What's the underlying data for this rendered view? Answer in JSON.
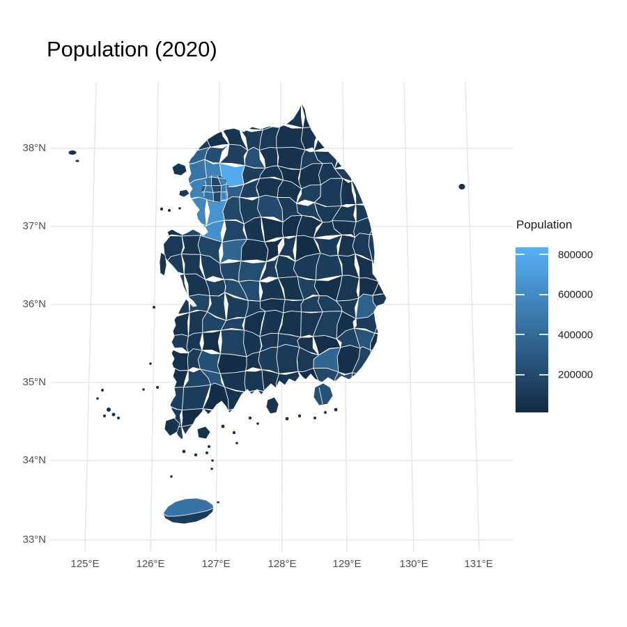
{
  "title": "Population (2020)",
  "legend": {
    "title": "Population",
    "tick_labels": [
      "800000",
      "600000",
      "400000",
      "200000"
    ],
    "gradient_top": "#56B1F7",
    "gradient_bottom": "#132B43"
  },
  "axes": {
    "x_ticks": [
      "125°E",
      "126°E",
      "127°E",
      "128°E",
      "129°E",
      "130°E",
      "131°E"
    ],
    "y_ticks": [
      "38°N",
      "37°N",
      "36°N",
      "35°N",
      "34°N",
      "33°N"
    ]
  },
  "chart_data": {
    "type": "choropleth_map",
    "title": "Population (2020)",
    "region_shown": "South Korea, municipal-level districts with white boundaries",
    "legend_title": "Population",
    "color_scale": {
      "type": "continuous_gradient",
      "low_color": "#132B43",
      "high_color": "#56B1F7",
      "ticks": [
        200000,
        400000,
        600000,
        800000
      ],
      "domain_estimate": [
        13000,
        835000
      ]
    },
    "x_axis": {
      "unit": "degrees east longitude",
      "ticks": [
        125,
        126,
        127,
        128,
        129,
        130,
        131
      ]
    },
    "y_axis": {
      "unit": "degrees north latitude",
      "ticks": [
        33,
        34,
        35,
        36,
        37,
        38
      ]
    },
    "grid": true,
    "background_color": "#FFFFFF",
    "gridline_color": "#E5E5E5",
    "axis_text_color": "#4D4D4D",
    "observed_pattern": "Most districts are dark navy (below ~150000). Bright high-population patches cluster around the capital area (~126.8-127.3E, 37.2-37.7N, up to ~800000+), with medium-blue patches at major cities along ~127-129E and on the north half of Jeju island (~126.5E, 33.45N).",
    "hotspots": [
      {
        "lon": 126.9,
        "lat": 37.25,
        "approx_value": 800000
      },
      {
        "lon": 127.27,
        "lat": 37.62,
        "approx_value": 650000
      },
      {
        "lon": 126.95,
        "lat": 37.55,
        "approx_value": 500000
      },
      {
        "lon": 126.78,
        "lat": 37.45,
        "approx_value": 450000
      },
      {
        "lon": 128.77,
        "lat": 35.3,
        "approx_value": 500000
      },
      {
        "lon": 128.6,
        "lat": 35.87,
        "approx_value": 400000
      },
      {
        "lon": 127.42,
        "lat": 36.33,
        "approx_value": 330000
      },
      {
        "lon": 126.85,
        "lat": 35.16,
        "approx_value": 330000
      },
      {
        "lon": 126.5,
        "lat": 33.45,
        "approx_value": 460000
      }
    ]
  }
}
